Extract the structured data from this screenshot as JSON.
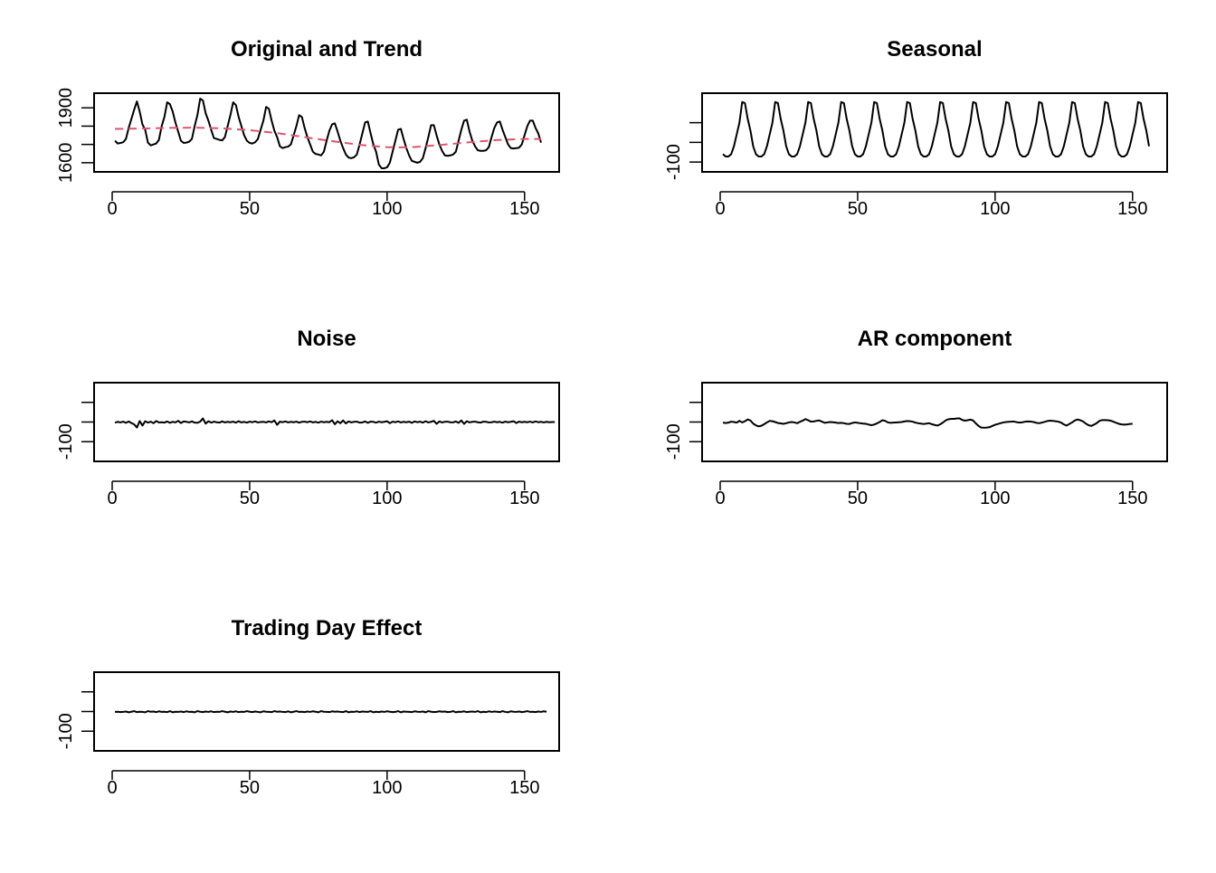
{
  "figure": {
    "background": "#ffffff",
    "line_color": "#000000",
    "trend_color": "#df536b"
  },
  "chart_data": [
    {
      "id": "original-trend",
      "type": "line",
      "title": "Original and Trend",
      "xlim": [
        0,
        160
      ],
      "ylim": [
        1550,
        1980
      ],
      "x_ticks": [
        0,
        50,
        100,
        150
      ],
      "y_ticks": [
        1600,
        1700,
        1800,
        1900
      ],
      "y_tick_labels": [
        "1600",
        "",
        "",
        "1900"
      ],
      "series": [
        {
          "role": "original",
          "style": "solid",
          "color": "#000000",
          "x_start": 1,
          "values": [
            1720,
            1705,
            1708,
            1712,
            1730,
            1790,
            1840,
            1890,
            1935,
            1880,
            1810,
            1780,
            1710,
            1695,
            1700,
            1705,
            1725,
            1800,
            1850,
            1930,
            1920,
            1880,
            1820,
            1770,
            1720,
            1708,
            1710,
            1715,
            1730,
            1800,
            1860,
            1950,
            1940,
            1870,
            1830,
            1780,
            1735,
            1730,
            1725,
            1722,
            1740,
            1800,
            1860,
            1930,
            1915,
            1850,
            1800,
            1750,
            1720,
            1708,
            1705,
            1712,
            1730,
            1780,
            1830,
            1905,
            1895,
            1830,
            1775,
            1740,
            1690,
            1680,
            1685,
            1688,
            1700,
            1750,
            1800,
            1860,
            1850,
            1790,
            1740,
            1700,
            1660,
            1648,
            1645,
            1640,
            1660,
            1720,
            1775,
            1810,
            1815,
            1770,
            1720,
            1680,
            1645,
            1628,
            1625,
            1630,
            1645,
            1700,
            1760,
            1820,
            1825,
            1760,
            1700,
            1660,
            1590,
            1570,
            1570,
            1575,
            1600,
            1660,
            1720,
            1780,
            1785,
            1730,
            1680,
            1640,
            1610,
            1605,
            1600,
            1605,
            1625,
            1680,
            1740,
            1805,
            1805,
            1750,
            1700,
            1665,
            1640,
            1638,
            1640,
            1645,
            1660,
            1720,
            1780,
            1830,
            1835,
            1770,
            1720,
            1690,
            1668,
            1665,
            1665,
            1668,
            1685,
            1740,
            1790,
            1820,
            1825,
            1780,
            1740,
            1700,
            1680,
            1678,
            1680,
            1682,
            1700,
            1750,
            1800,
            1830,
            1830,
            1790,
            1760,
            1710
          ]
        },
        {
          "role": "trend",
          "style": "dashed",
          "color": "#df536b",
          "x": [
            1,
            10,
            20,
            30,
            40,
            50,
            60,
            70,
            80,
            90,
            100,
            105,
            110,
            120,
            130,
            140,
            150,
            156
          ],
          "values": [
            1785,
            1787,
            1790,
            1792,
            1788,
            1778,
            1762,
            1740,
            1718,
            1698,
            1685,
            1684,
            1686,
            1698,
            1712,
            1724,
            1730,
            1730
          ]
        }
      ]
    },
    {
      "id": "seasonal",
      "type": "line",
      "title": "Seasonal",
      "xlim": [
        0,
        160
      ],
      "ylim": [
        -150,
        250
      ],
      "x_ticks": [
        0,
        50,
        100,
        150
      ],
      "y_ticks": [
        -100,
        0,
        100
      ],
      "y_tick_labels": [
        "-100",
        "",
        ""
      ],
      "series": [
        {
          "role": "seasonal",
          "style": "solid",
          "color": "#000000",
          "x_start": 1,
          "period": 12,
          "values": [
            -60,
            -72,
            -72,
            -60,
            -20,
            40,
            100,
            205,
            200,
            120,
            60,
            -20
          ]
        }
      ]
    },
    {
      "id": "noise",
      "type": "line",
      "title": "Noise",
      "xlim": [
        0,
        160
      ],
      "ylim": [
        -200,
        200
      ],
      "x_ticks": [
        0,
        50,
        100,
        150
      ],
      "y_ticks": [
        -100,
        0,
        100
      ],
      "y_tick_labels": [
        "-100",
        "",
        ""
      ],
      "series": [
        {
          "role": "noise",
          "style": "solid",
          "color": "#000000",
          "x_start": 1,
          "values": [
            -3,
            1,
            -2,
            2,
            -4,
            3,
            -5,
            -12,
            -28,
            5,
            -18,
            4,
            -3,
            2,
            -6,
            5,
            -2,
            -1,
            -3,
            3,
            -4,
            1,
            -2,
            6,
            -5,
            3,
            1,
            -2,
            3,
            -3,
            -4,
            2,
            18,
            -8,
            4,
            -3,
            2,
            -1,
            -3,
            3,
            -2,
            1,
            -1,
            2,
            -3,
            4,
            -2,
            1,
            -3,
            2,
            -1,
            3,
            -2,
            0,
            1,
            -2,
            3,
            -1,
            8,
            -14,
            2,
            -1,
            3,
            -2,
            1,
            -1,
            2,
            -3,
            1,
            2,
            -1,
            3,
            -2,
            1,
            -3,
            2,
            -1,
            1,
            -1,
            9,
            -11,
            4,
            -6,
            8,
            -7,
            3,
            -2,
            1,
            2,
            -3,
            -2,
            3,
            -4,
            2,
            1,
            -3,
            2,
            -1,
            1,
            4,
            -6,
            2,
            -1,
            3,
            -2,
            1,
            -1,
            2,
            -4,
            3,
            -1,
            2,
            -3,
            4,
            -2,
            1,
            6,
            -9,
            3,
            -2,
            1,
            2,
            -1,
            -2,
            3,
            -4,
            8,
            -9,
            4,
            -2,
            1,
            2,
            -1,
            -3,
            2,
            1,
            -2,
            -1,
            2,
            -1,
            1,
            -3,
            2,
            -1,
            1,
            4,
            -5,
            2,
            -1,
            1,
            -1,
            2,
            -2,
            3,
            -1,
            1,
            -2,
            1,
            -1,
            0,
            0
          ]
        }
      ]
    },
    {
      "id": "ar-component",
      "type": "line",
      "title": "AR component",
      "xlim": [
        0,
        160
      ],
      "ylim": [
        -200,
        200
      ],
      "x_ticks": [
        0,
        50,
        100,
        150
      ],
      "y_ticks": [
        -100,
        0,
        100
      ],
      "y_tick_labels": [
        "-100",
        "",
        ""
      ],
      "series": [
        {
          "role": "ar",
          "style": "solid",
          "color": "#000000",
          "x_start": 1,
          "values": [
            -3,
            -5,
            -3,
            2,
            0,
            -3,
            6,
            -2,
            4,
            13,
            8,
            -8,
            -17,
            -22,
            -19,
            -11,
            -2,
            6,
            4,
            0,
            -5,
            -7,
            -9,
            -6,
            -2,
            0,
            -2,
            -6,
            1,
            7,
            15,
            9,
            2,
            3,
            6,
            8,
            2,
            -4,
            -2,
            0,
            -1,
            -3,
            -5,
            -4,
            -6,
            -9,
            -10,
            -5,
            -2,
            -4,
            -6,
            -8,
            -9,
            -13,
            -16,
            -13,
            -7,
            0,
            9,
            6,
            -2,
            -4,
            -3,
            -2,
            -1,
            0,
            3,
            5,
            4,
            2,
            -3,
            -6,
            -8,
            -10,
            -8,
            -6,
            -11,
            -15,
            -18,
            -12,
            -3,
            8,
            14,
            16,
            16,
            18,
            19,
            11,
            7,
            9,
            12,
            8,
            -7,
            -20,
            -28,
            -29,
            -28,
            -26,
            -20,
            -14,
            -10,
            -6,
            -2,
            0,
            1,
            2,
            2,
            -1,
            -3,
            -1,
            2,
            3,
            2,
            0,
            -4,
            -6,
            -3,
            1,
            5,
            7,
            6,
            4,
            2,
            -3,
            -12,
            -18,
            -10,
            -2,
            8,
            13,
            9,
            3,
            -8,
            -16,
            -20,
            -13,
            -5,
            6,
            10,
            10,
            9,
            7,
            2,
            -4,
            -9,
            -12,
            -13,
            -12,
            -10,
            -9
          ]
        }
      ]
    },
    {
      "id": "trading-day",
      "type": "line",
      "title": "Trading Day Effect",
      "xlim": [
        0,
        160
      ],
      "ylim": [
        -200,
        200
      ],
      "x_ticks": [
        0,
        50,
        100,
        150
      ],
      "y_ticks": [
        -100,
        0,
        100
      ],
      "y_tick_labels": [
        "-100",
        "",
        ""
      ],
      "series": [
        {
          "role": "trading-day",
          "style": "solid",
          "color": "#000000",
          "x_start": 1,
          "values": [
            -2,
            -1,
            -3,
            -2,
            0,
            -4,
            -1,
            2,
            -3,
            -1,
            -2,
            -4,
            2,
            -1,
            0,
            -3,
            1,
            -2,
            -1,
            -3,
            2,
            -4,
            -1,
            -2,
            0,
            -3,
            1,
            -2,
            -1,
            -4,
            2,
            -1,
            -3,
            0,
            -2,
            1,
            -3,
            -1,
            -2,
            2,
            -1,
            -4,
            0,
            -2,
            1,
            -3,
            -1,
            -2,
            2,
            -1,
            -3,
            0,
            -2,
            -4,
            1,
            -1,
            -2,
            -3,
            2,
            -1,
            0,
            -2,
            -3,
            1,
            -4,
            -1,
            2,
            -2,
            -1,
            -3,
            0,
            -2,
            1,
            -1,
            -4,
            2,
            -1,
            -2,
            -3,
            1,
            -1,
            0,
            -2,
            -3,
            2,
            -4,
            -1,
            -2,
            1,
            -3,
            0,
            -1,
            -2,
            2,
            -4,
            -1,
            -3,
            0,
            -2,
            1,
            -1,
            -3,
            -2,
            2,
            -4,
            0,
            -1,
            -2,
            -3,
            1,
            -1,
            -2,
            0,
            -4,
            2,
            -1,
            -3,
            -2,
            1,
            -1,
            0,
            -3,
            -2,
            2,
            -4,
            -1,
            -2,
            1,
            -3,
            -1,
            0,
            -2,
            2,
            -4,
            -1,
            -3,
            1,
            -2,
            0,
            -1,
            -3,
            2,
            -2,
            -4,
            1,
            -1,
            -2,
            0,
            -3,
            -1,
            2,
            -2,
            -1,
            -3,
            0,
            -2,
            1,
            -1
          ]
        }
      ]
    }
  ]
}
